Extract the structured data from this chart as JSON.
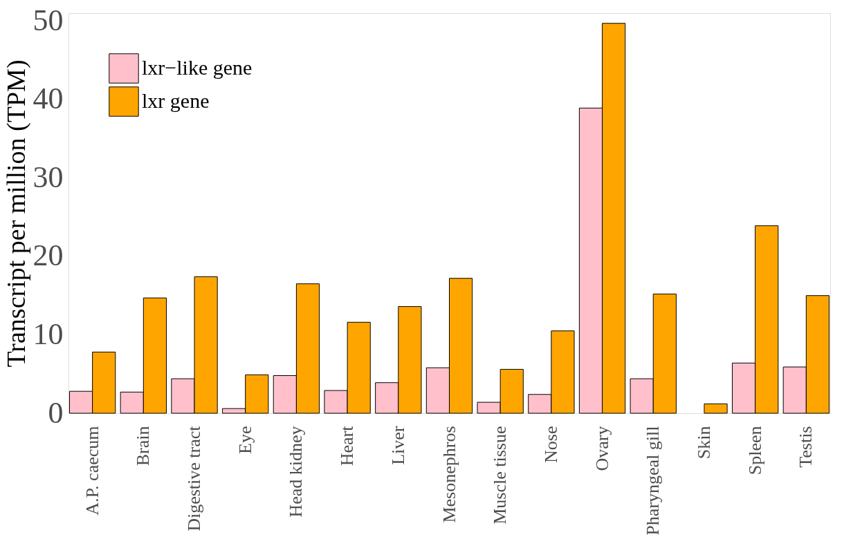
{
  "chart_data": {
    "type": "bar",
    "ylabel": "Transcript per million (TPM)",
    "categories": [
      "A.P. caecum",
      "Brain",
      "Digestive tract",
      "Eye",
      "Head kidney",
      "Heart",
      "Liver",
      "Mesonephros",
      "Muscle tissue",
      "Nose",
      "Ovary",
      "Pharyngeal gill",
      "Skin",
      "Spleen",
      "Testis"
    ],
    "series": [
      {
        "name": "lxr−like gene",
        "color": "#ffc0cb",
        "values": [
          2.8,
          2.7,
          4.4,
          0.6,
          4.8,
          2.9,
          3.9,
          5.8,
          1.4,
          2.4,
          38.9,
          4.4,
          null,
          6.4,
          5.9
        ]
      },
      {
        "name": "lxr gene",
        "color": "#ffa500",
        "values": [
          7.8,
          14.7,
          17.4,
          4.9,
          16.5,
          11.6,
          13.6,
          17.2,
          5.6,
          10.5,
          49.7,
          15.2,
          1.2,
          23.9,
          15.0
        ]
      }
    ],
    "ylim": [
      0,
      51
    ],
    "yticks": [
      0,
      10,
      20,
      30,
      40,
      50
    ],
    "grid": false,
    "legend": "top left"
  }
}
